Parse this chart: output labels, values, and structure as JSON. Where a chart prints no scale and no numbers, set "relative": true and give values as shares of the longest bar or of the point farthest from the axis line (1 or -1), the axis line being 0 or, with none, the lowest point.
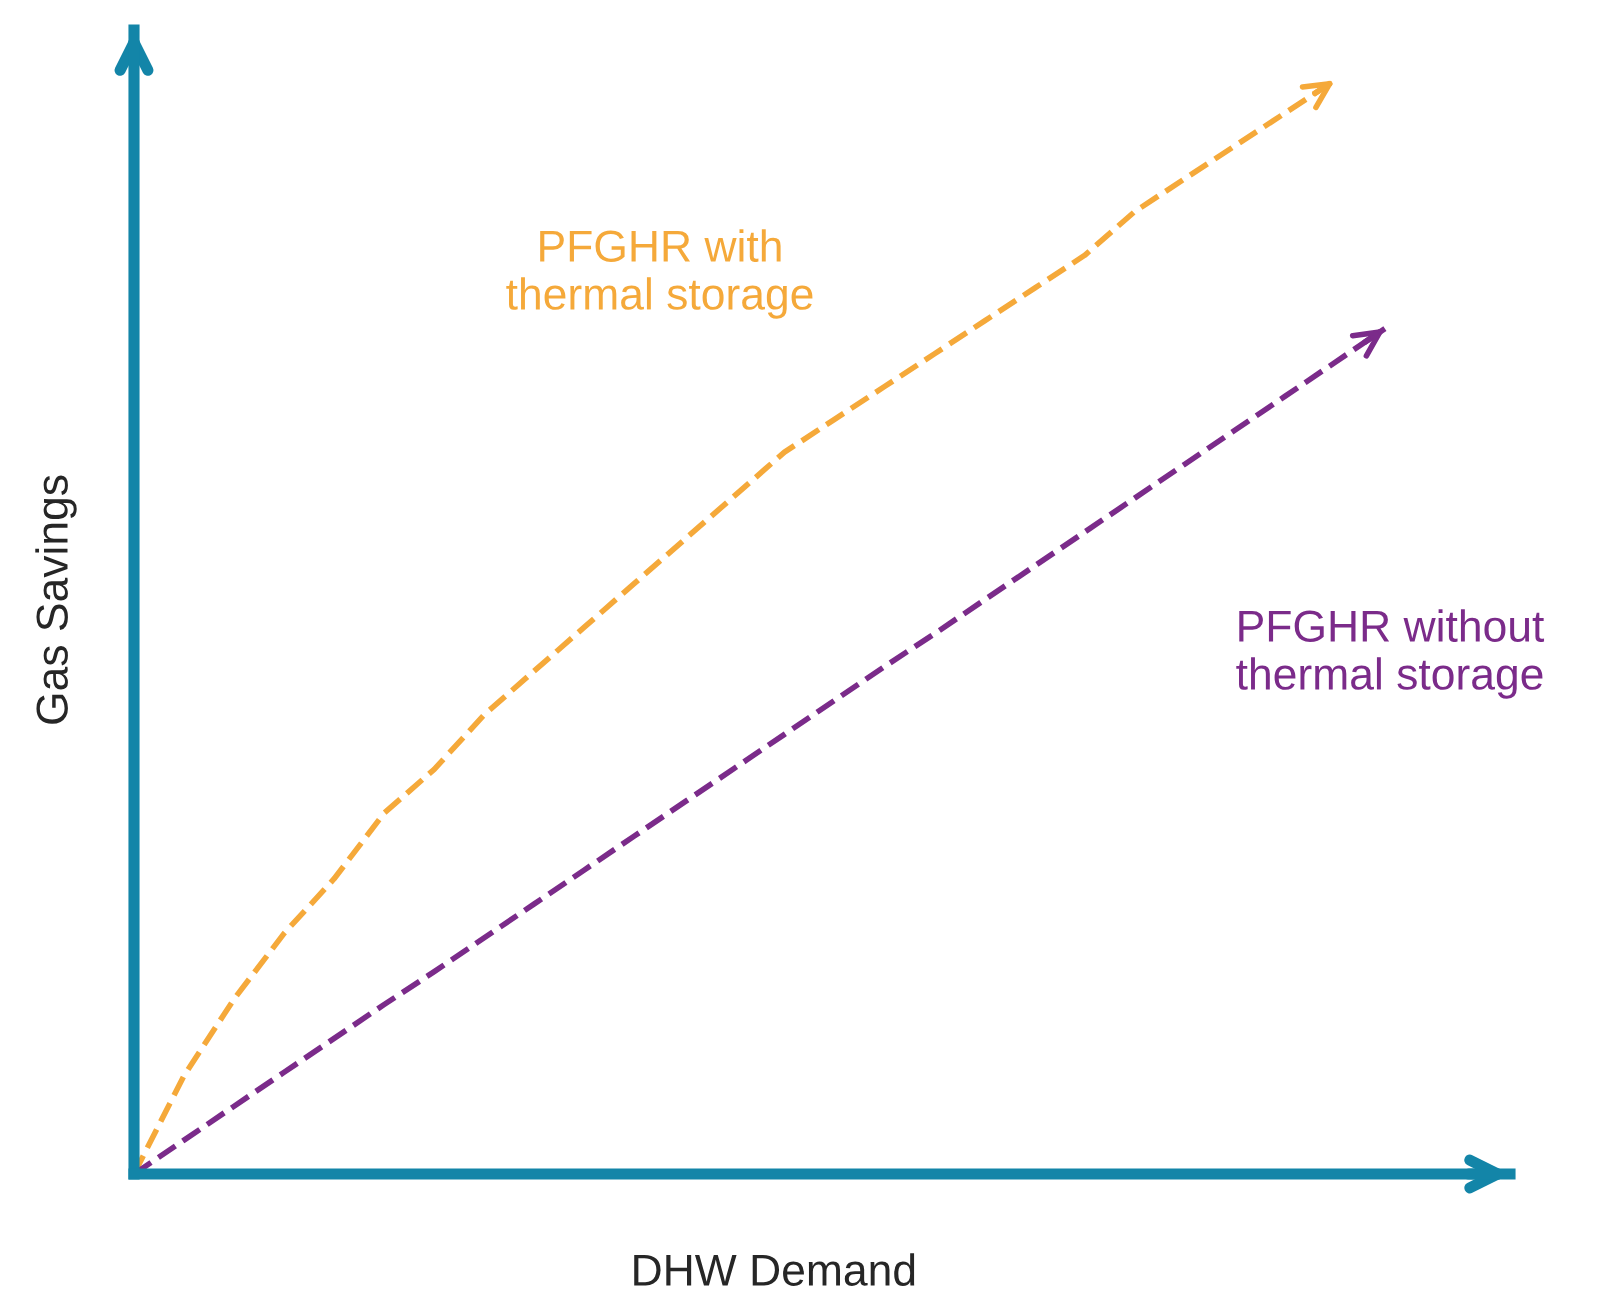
{
  "chart_data": {
    "type": "line",
    "relative": true,
    "xlabel": "DHW Demand",
    "ylabel": "Gas Savings",
    "legend": false,
    "line_style": "dashed",
    "marker": "none",
    "categories": [
      null,
      null,
      null,
      null,
      null,
      null,
      null,
      null,
      null,
      null,
      null,
      null,
      null,
      null,
      null,
      null,
      null,
      null,
      null,
      null,
      null,
      null,
      null,
      null,
      null,
      null
    ],
    "series": [
      {
        "color": "#f5a93a",
        "values": [
          0,
          0.09,
          0.16,
          0.22,
          0.27,
          0.33,
          0.37,
          0.42,
          0.46,
          0.5,
          0.54,
          0.58,
          0.62,
          0.66,
          0.69,
          0.72,
          0.75,
          0.78,
          0.81,
          0.84,
          0.88,
          0.91,
          0.94,
          0.97,
          1.0,
          null
        ]
      },
      {
        "color": "#7b2b8a",
        "values": [
          0,
          0.031,
          0.062,
          0.093,
          0.124,
          0.155,
          0.185,
          0.216,
          0.247,
          0.278,
          0.309,
          0.34,
          0.371,
          0.402,
          0.433,
          0.464,
          0.494,
          0.525,
          0.556,
          0.587,
          0.618,
          0.649,
          0.68,
          0.711,
          0.742,
          0.773
        ]
      }
    ],
    "annotations": [
      "PFGHR with\nthermal storage",
      "PFGHR without\nthermal storage"
    ]
  }
}
